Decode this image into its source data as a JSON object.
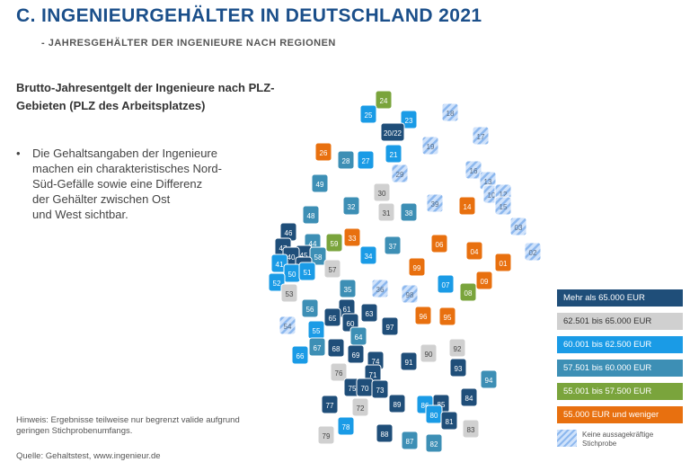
{
  "header": {
    "title": "C. INGENIEURGEHÄLTER IN DEUTSCHLAND 2021",
    "subtitle": "- JAHRESGEHÄLTER DER INGENIEURE NACH REGIONEN"
  },
  "text": {
    "heading": "Brutto-Jahresentgelt der Ingenieure nach PLZ-Gebieten (PLZ des Arbeitsplatzes)",
    "bullet": "Die Gehaltsangaben der Ingenieure\nmachen ein charakteristisches Nord-\nSüd-Gefälle sowie eine Differenz\nder Gehälter zwischen Ost\nund West sichtbar.",
    "note": "Hinweis: Ergebnisse teilweise nur begrenzt valide aufgrund geringen Stichprobenumfangs.",
    "source": "Quelle: Gehaltstest, www.ingenieur.de"
  },
  "colors": {
    "c1": "#1f4e79",
    "c2": "#d0d0d0",
    "c3": "#1a9be6",
    "c4": "#3d8fb5",
    "c5": "#7aa43c",
    "c6": "#e8700f",
    "hatch": "#a9c9f2"
  },
  "legend": {
    "items": [
      {
        "label": "Mehr als 65.000 EUR",
        "color": "#1f4e79",
        "text_color": "#ffffff"
      },
      {
        "label": "62.501 bis 65.000 EUR",
        "color": "#d0d0d0",
        "text_color": "#333333"
      },
      {
        "label": "60.001 bis 62.500 EUR",
        "color": "#1a9be6",
        "text_color": "#ffffff"
      },
      {
        "label": "57.501 bis 60.000 EUR",
        "color": "#3d8fb5",
        "text_color": "#ffffff"
      },
      {
        "label": "55.001 bis 57.500 EUR",
        "color": "#7aa43c",
        "text_color": "#ffffff"
      },
      {
        "label": "55.000 EUR und weniger",
        "color": "#e8700f",
        "text_color": "#ffffff"
      }
    ],
    "hatch_label": "Keine aussagekräftige Stichprobe"
  },
  "regions": [
    {
      "code": "24",
      "class": 5
    },
    {
      "code": "25",
      "class": 3
    },
    {
      "code": "23",
      "class": 3
    },
    {
      "code": "18",
      "class": 0
    },
    {
      "code": "17",
      "class": 0
    },
    {
      "code": "20/22",
      "class": 1
    },
    {
      "code": "26",
      "class": 6
    },
    {
      "code": "28",
      "class": 4
    },
    {
      "code": "27",
      "class": 3
    },
    {
      "code": "21",
      "class": 3
    },
    {
      "code": "19",
      "class": 0
    },
    {
      "code": "29",
      "class": 0
    },
    {
      "code": "16",
      "class": 0
    },
    {
      "code": "13",
      "class": 0
    },
    {
      "code": "10",
      "class": 0
    },
    {
      "code": "12",
      "class": 0
    },
    {
      "code": "15",
      "class": 0
    },
    {
      "code": "49",
      "class": 4
    },
    {
      "code": "30",
      "class": 2
    },
    {
      "code": "31",
      "class": 2
    },
    {
      "code": "38",
      "class": 4
    },
    {
      "code": "39",
      "class": 0
    },
    {
      "code": "14",
      "class": 6
    },
    {
      "code": "48",
      "class": 4
    },
    {
      "code": "32",
      "class": 4
    },
    {
      "code": "03",
      "class": 0
    },
    {
      "code": "02",
      "class": 0
    },
    {
      "code": "46",
      "class": 1
    },
    {
      "code": "44",
      "class": 4
    },
    {
      "code": "59",
      "class": 5
    },
    {
      "code": "33",
      "class": 6
    },
    {
      "code": "37",
      "class": 4
    },
    {
      "code": "06",
      "class": 6
    },
    {
      "code": "04",
      "class": 6
    },
    {
      "code": "47",
      "class": 1
    },
    {
      "code": "45",
      "class": 1
    },
    {
      "code": "58",
      "class": 4
    },
    {
      "code": "40",
      "class": 1
    },
    {
      "code": "42",
      "class": 1
    },
    {
      "code": "41",
      "class": 3
    },
    {
      "code": "50",
      "class": 3
    },
    {
      "code": "51",
      "class": 3
    },
    {
      "code": "57",
      "class": 2
    },
    {
      "code": "34",
      "class": 3
    },
    {
      "code": "99",
      "class": 6
    },
    {
      "code": "01",
      "class": 6
    },
    {
      "code": "09",
      "class": 6
    },
    {
      "code": "52",
      "class": 3
    },
    {
      "code": "53",
      "class": 2
    },
    {
      "code": "35",
      "class": 4
    },
    {
      "code": "36",
      "class": 0
    },
    {
      "code": "98",
      "class": 0
    },
    {
      "code": "07",
      "class": 3
    },
    {
      "code": "08",
      "class": 5
    },
    {
      "code": "56",
      "class": 4
    },
    {
      "code": "61",
      "class": 1
    },
    {
      "code": "65",
      "class": 1
    },
    {
      "code": "63",
      "class": 1
    },
    {
      "code": "96",
      "class": 6
    },
    {
      "code": "95",
      "class": 6
    },
    {
      "code": "54",
      "class": 0
    },
    {
      "code": "55",
      "class": 3
    },
    {
      "code": "60",
      "class": 1
    },
    {
      "code": "97",
      "class": 1
    },
    {
      "code": "67",
      "class": 4
    },
    {
      "code": "68",
      "class": 1
    },
    {
      "code": "64",
      "class": 4
    },
    {
      "code": "66",
      "class": 3
    },
    {
      "code": "69",
      "class": 1
    },
    {
      "code": "74",
      "class": 1
    },
    {
      "code": "90",
      "class": 2
    },
    {
      "code": "92",
      "class": 2
    },
    {
      "code": "91",
      "class": 1
    },
    {
      "code": "76",
      "class": 2
    },
    {
      "code": "71",
      "class": 1
    },
    {
      "code": "93",
      "class": 1
    },
    {
      "code": "75",
      "class": 1
    },
    {
      "code": "70",
      "class": 1
    },
    {
      "code": "73",
      "class": 1
    },
    {
      "code": "86",
      "class": 3
    },
    {
      "code": "85",
      "class": 1
    },
    {
      "code": "94",
      "class": 4
    },
    {
      "code": "84",
      "class": 1
    },
    {
      "code": "77",
      "class": 1
    },
    {
      "code": "72",
      "class": 2
    },
    {
      "code": "89",
      "class": 1
    },
    {
      "code": "80",
      "class": 3
    },
    {
      "code": "81",
      "class": 1
    },
    {
      "code": "78",
      "class": 3
    },
    {
      "code": "88",
      "class": 1
    },
    {
      "code": "83",
      "class": 2
    },
    {
      "code": "79",
      "class": 2
    },
    {
      "code": "87",
      "class": 4
    },
    {
      "code": "82",
      "class": 4
    }
  ]
}
